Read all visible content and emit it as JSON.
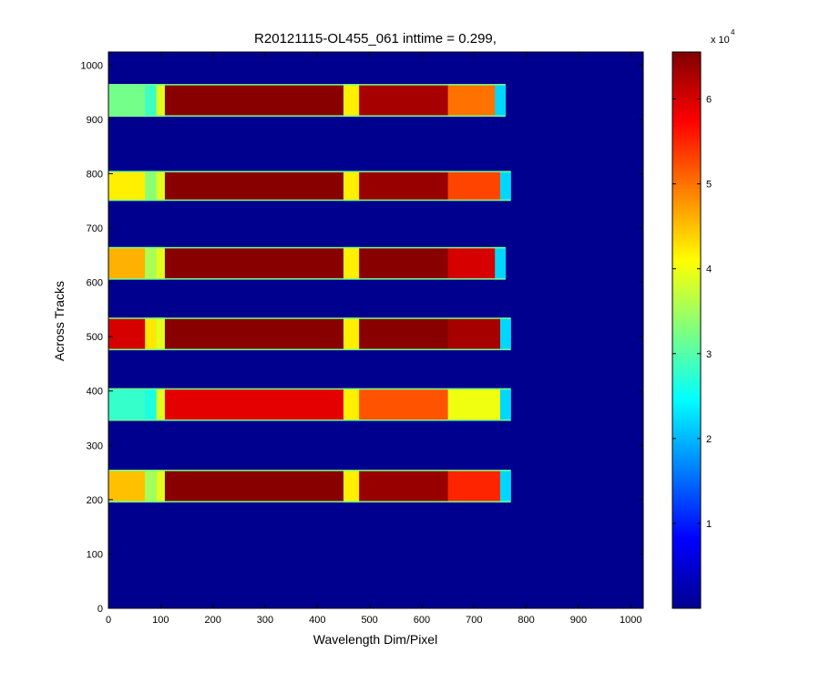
{
  "chart_data": {
    "type": "heatmap",
    "title": "R20121115-OL455_061 inttime = 0.299,",
    "xlabel": "Wavelength Dim/Pixel",
    "ylabel": "Across Tracks",
    "xlim": [
      0,
      1024
    ],
    "ylim": [
      0,
      1024
    ],
    "x_ticks": [
      0,
      100,
      200,
      300,
      400,
      500,
      600,
      700,
      800,
      900,
      1000
    ],
    "y_ticks": [
      0,
      100,
      200,
      300,
      400,
      500,
      600,
      700,
      800,
      900,
      1000
    ],
    "grid": false,
    "colormap": "jet",
    "background_value": 0,
    "colorbar": {
      "clim": [
        0,
        65535
      ],
      "ticks": [
        1,
        2,
        3,
        4,
        5,
        6
      ],
      "multiplier_base": "x 10",
      "multiplier_exponent": "4"
    },
    "tracks": [
      {
        "y_range": [
          195,
          255
        ],
        "x_range": [
          0,
          770
        ],
        "left_level": 4.5,
        "main_level": 6.5,
        "right_level": 6.4,
        "right_end_level": 5.5
      },
      {
        "y_range": [
          345,
          405
        ],
        "x_range": [
          0,
          770
        ],
        "left_level": 2.8,
        "main_level": 5.9,
        "right_level": 5.2,
        "right_end_level": 4.0
      },
      {
        "y_range": [
          475,
          535
        ],
        "x_range": [
          0,
          770
        ],
        "left_level": 6.0,
        "main_level": 6.5,
        "right_level": 6.5,
        "right_end_level": 6.3
      },
      {
        "y_range": [
          605,
          665
        ],
        "x_range": [
          0,
          760
        ],
        "left_level": 4.6,
        "main_level": 6.5,
        "right_level": 6.5,
        "right_end_level": 6.0
      },
      {
        "y_range": [
          750,
          805
        ],
        "x_range": [
          0,
          770
        ],
        "left_level": 4.2,
        "main_level": 6.5,
        "right_level": 6.4,
        "right_end_level": 5.3
      },
      {
        "y_range": [
          905,
          965
        ],
        "x_range": [
          0,
          760
        ],
        "left_level": 3.2,
        "main_level": 6.5,
        "right_level": 6.3,
        "right_end_level": 5.0
      }
    ]
  }
}
